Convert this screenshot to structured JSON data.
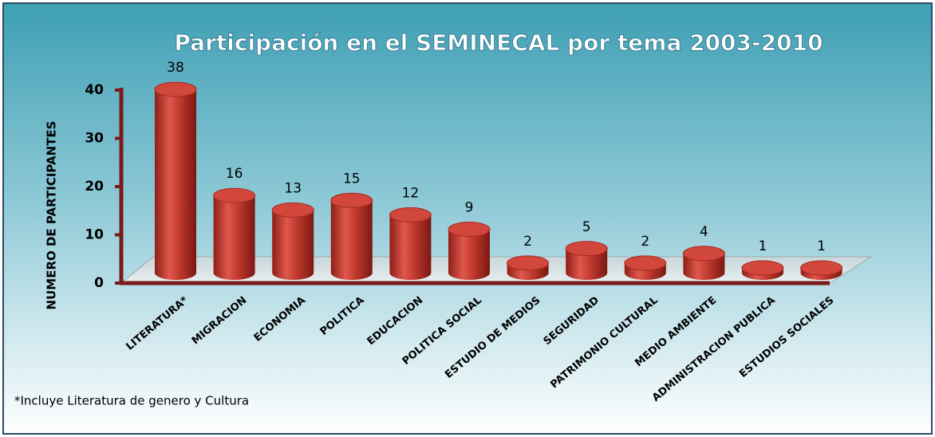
{
  "chart_data": {
    "type": "bar3d",
    "title": "Participación en el SEMINECAL por tema 2003-2010",
    "y_label": "NUMERO DE PARTICIPANTES",
    "note": "*Incluye Literatura de genero y Cultura",
    "categories": [
      "LITERATURA*",
      "MIGRACION",
      "ECONOMIA",
      "POLITICA",
      "EDUCACION",
      "POLITICA SOCIAL",
      "ESTUDIO DE MEDIOS",
      "SEGURIDAD",
      "PATRIMONIO CULTURAL",
      "MEDIO AMBIENTE",
      "ADMINISTRACION PUBLICA",
      "ESTUDIOS SOCIALES"
    ],
    "values": [
      38,
      16,
      13,
      15,
      12,
      9,
      2,
      5,
      2,
      4,
      1,
      1
    ],
    "color": "#c0392e",
    "ylim": [
      0,
      40
    ],
    "yticks": [
      0,
      10,
      20,
      30,
      40
    ],
    "grid": false
  }
}
